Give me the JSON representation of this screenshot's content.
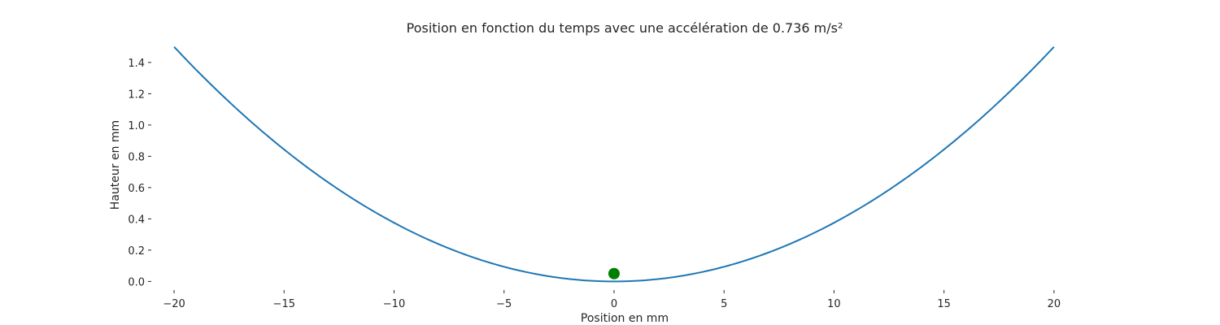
{
  "chart_data": {
    "type": "line",
    "title": "Position en fonction du temps avec une accélération de 0.736 m/s²",
    "xlabel": "Position en mm",
    "ylabel": "Hauteur en mm",
    "xlim": [
      -21,
      22
    ],
    "ylim": [
      -0.05,
      1.55
    ],
    "x_ticks": [
      -20,
      -15,
      -10,
      -5,
      0,
      5,
      10,
      15,
      20
    ],
    "x_tick_labels": [
      "−20",
      "−15",
      "−10",
      "−5",
      "0",
      "5",
      "10",
      "15",
      "20"
    ],
    "y_ticks": [
      0.0,
      0.2,
      0.4,
      0.6,
      0.8,
      1.0,
      1.2,
      1.4
    ],
    "y_tick_labels": [
      "0.0",
      "0.2",
      "0.4",
      "0.6",
      "0.8",
      "1.0",
      "1.2",
      "1.4"
    ],
    "grid": false,
    "series": [
      {
        "type": "line",
        "color": "#1f77b4",
        "x": [
          -20,
          -18,
          -16,
          -14,
          -12,
          -10,
          -8,
          -6,
          -4,
          -2,
          0,
          2,
          4,
          6,
          8,
          10,
          12,
          14,
          16,
          18,
          20
        ],
        "y": [
          1.5,
          1.215,
          0.96,
          0.735,
          0.54,
          0.375,
          0.24,
          0.135,
          0.06,
          0.015,
          0.0,
          0.015,
          0.06,
          0.135,
          0.24,
          0.375,
          0.54,
          0.735,
          0.96,
          1.215,
          1.5
        ]
      },
      {
        "type": "scatter",
        "color": "#008000",
        "x": [
          0
        ],
        "y": [
          0.05
        ]
      }
    ]
  }
}
